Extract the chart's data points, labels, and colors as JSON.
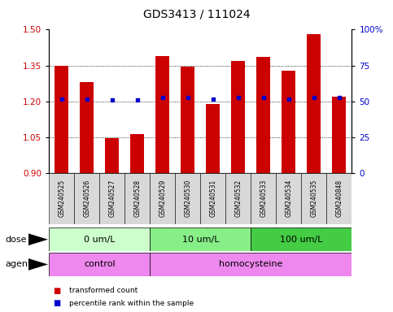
{
  "title": "GDS3413 / 111024",
  "samples": [
    "GSM240525",
    "GSM240526",
    "GSM240527",
    "GSM240528",
    "GSM240529",
    "GSM240530",
    "GSM240531",
    "GSM240532",
    "GSM240533",
    "GSM240534",
    "GSM240535",
    "GSM240848"
  ],
  "bar_values": [
    1.35,
    1.28,
    1.045,
    1.065,
    1.39,
    1.345,
    1.19,
    1.37,
    1.385,
    1.33,
    1.48,
    1.22
  ],
  "percentile_values": [
    1.21,
    1.21,
    1.205,
    1.205,
    1.215,
    1.215,
    1.21,
    1.215,
    1.215,
    1.21,
    1.215,
    1.215
  ],
  "bar_color": "#cc0000",
  "percentile_color": "#0000cc",
  "ymin": 0.9,
  "ymax": 1.5,
  "y_left_ticks": [
    0.9,
    1.05,
    1.2,
    1.35,
    1.5
  ],
  "y_right_ticks": [
    0,
    25,
    50,
    75,
    100
  ],
  "y_right_labels": [
    "0",
    "25",
    "50",
    "75",
    "100%"
  ],
  "grid_values": [
    1.05,
    1.2,
    1.35
  ],
  "dose_groups": [
    {
      "label": "0 um/L",
      "start": 0,
      "end": 4,
      "color": "#ccffcc"
    },
    {
      "label": "10 um/L",
      "start": 4,
      "end": 8,
      "color": "#88ee88"
    },
    {
      "label": "100 um/L",
      "start": 8,
      "end": 12,
      "color": "#44cc44"
    }
  ],
  "agent_groups": [
    {
      "label": "control",
      "start": 0,
      "end": 4,
      "color": "#ee88ee"
    },
    {
      "label": "homocysteine",
      "start": 4,
      "end": 12,
      "color": "#ee88ee"
    }
  ],
  "dose_label": "dose",
  "agent_label": "agent",
  "legend_bar_label": "transformed count",
  "legend_pct_label": "percentile rank within the sample",
  "bar_width": 0.55,
  "sample_box_color": "#d8d8d8",
  "tick_fontsize": 7.5,
  "sample_fontsize": 5.5,
  "label_fontsize": 8,
  "row_fontsize": 8,
  "title_fontsize": 10
}
